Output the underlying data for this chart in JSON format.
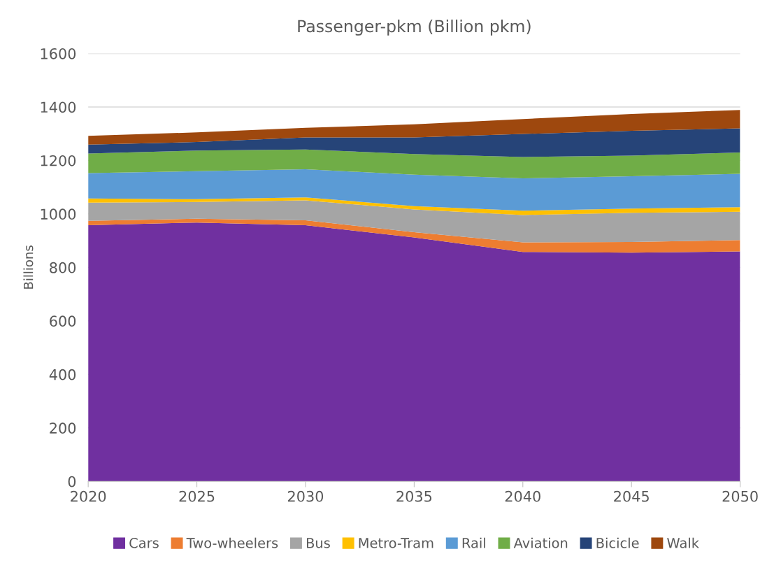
{
  "chart_data": {
    "type": "area",
    "stacked": true,
    "title": "Passenger-pkm (Billion pkm)",
    "ylabel": "Billions",
    "x": [
      2020,
      2025,
      2030,
      2035,
      2040,
      2045,
      2050
    ],
    "series": [
      {
        "name": "Cars",
        "color": "#7030a0",
        "values": [
          958,
          968,
          958,
          912,
          858,
          855,
          860
        ]
      },
      {
        "name": "Two-wheelers",
        "color": "#ed7d31",
        "values": [
          16,
          14,
          18,
          20,
          36,
          40,
          42
        ]
      },
      {
        "name": "Bus",
        "color": "#a5a5a5",
        "values": [
          68,
          63,
          75,
          85,
          102,
          109,
          106
        ]
      },
      {
        "name": "Metro-Tram",
        "color": "#ffc000",
        "values": [
          16,
          10,
          11,
          12,
          16,
          16,
          17
        ]
      },
      {
        "name": "Rail",
        "color": "#5b9bd5",
        "values": [
          95,
          105,
          105,
          118,
          121,
          121,
          125
        ]
      },
      {
        "name": "Aviation",
        "color": "#70ad47",
        "values": [
          73,
          77,
          74,
          77,
          80,
          77,
          80
        ]
      },
      {
        "name": "Bicicle",
        "color": "#264478",
        "values": [
          33,
          32,
          45,
          62,
          86,
          93,
          90
        ]
      },
      {
        "name": "Walk",
        "color": "#9e480e",
        "values": [
          33,
          36,
          36,
          49,
          56,
          63,
          69
        ]
      }
    ],
    "xlim": [
      2020,
      2050
    ],
    "xticks": [
      2020,
      2025,
      2030,
      2035,
      2040,
      2045,
      2050
    ],
    "ylim": [
      0,
      1600
    ],
    "yticks": [
      0,
      200,
      400,
      600,
      800,
      1000,
      1200,
      1400,
      1600
    ],
    "grid": "y",
    "legend": "bottom"
  }
}
